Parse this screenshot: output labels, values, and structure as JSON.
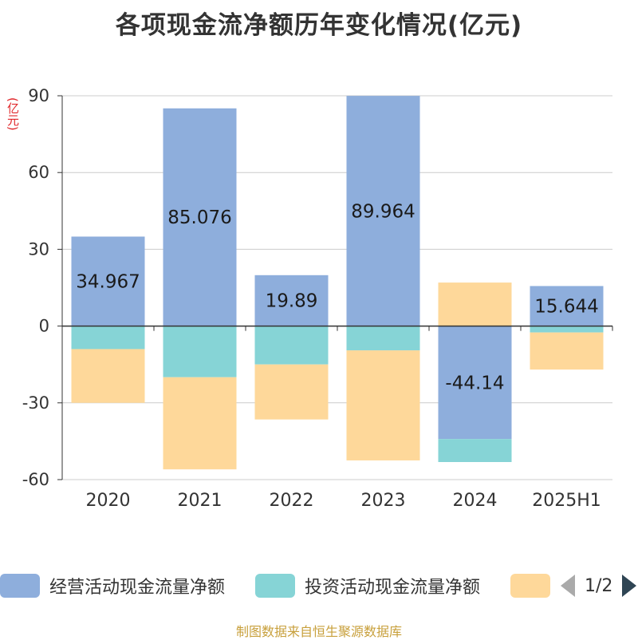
{
  "title": "各项现金流净额历年变化情况(亿元)",
  "unit_label": "(亿元)",
  "legend": {
    "items": [
      {
        "label": "经营活动现金流量净额",
        "color": "#8eaedc"
      },
      {
        "label": "投资活动现金流量净额",
        "color": "#86d4d6"
      },
      {
        "label": "",
        "color": "#fed89a"
      }
    ],
    "page": "1/2"
  },
  "source": "制图数据来自恒生聚源数据库",
  "chart_data": {
    "type": "bar",
    "stacked": true,
    "categories": [
      "2020",
      "2021",
      "2022",
      "2023",
      "2024",
      "2025H1"
    ],
    "ylim": [
      -60,
      90
    ],
    "yticks": [
      -60,
      -30,
      0,
      30,
      60,
      90
    ],
    "grid": true,
    "legend_position": "bottom",
    "series": [
      {
        "name": "经营活动现金流量净额",
        "color": "#8eaedc",
        "values": [
          34.967,
          85.076,
          19.89,
          89.964,
          -44.14,
          15.644
        ],
        "labels": [
          "34.967",
          "85.076",
          "19.89",
          "89.964",
          "-44.14",
          "15.644"
        ]
      },
      {
        "name": "投资活动现金流量净额",
        "color": "#86d4d6",
        "values": [
          -9,
          -20,
          -15,
          -9.5,
          -9,
          -2.5
        ]
      },
      {
        "color": "#fed89a",
        "values": [
          -21,
          -36,
          -21.5,
          -43,
          17,
          -14.5
        ]
      }
    ]
  }
}
